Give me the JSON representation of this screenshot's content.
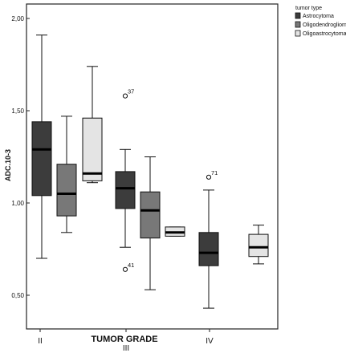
{
  "chart_data": {
    "type": "boxplot",
    "ylabel": "ADC.10-3",
    "xlabel": "TUMOR GRADE",
    "ylim": [
      0.35,
      2.1
    ],
    "yticks": [
      "2,00",
      "1,50",
      "1,00",
      "0,50"
    ],
    "ytick_values": [
      2.0,
      1.5,
      1.0,
      0.5
    ],
    "categories": [
      "II",
      "III",
      "IV"
    ],
    "legend": {
      "title": "tumor type",
      "position": "top-right outside",
      "entries": [
        {
          "name": "Astrocytoma",
          "color": "#3c3c3c"
        },
        {
          "name": "Oligodendroglioma",
          "color": "#787878"
        },
        {
          "name": "Oligoastrocytoma",
          "color": "#e4e4e4"
        }
      ]
    },
    "boxes": [
      {
        "category": "II",
        "series": "Astrocytoma",
        "min": 0.7,
        "q1": 1.04,
        "median": 1.29,
        "q3": 1.44,
        "max": 1.91
      },
      {
        "category": "II",
        "series": "Oligodendroglioma",
        "min": 0.84,
        "q1": 0.93,
        "median": 1.05,
        "q3": 1.21,
        "max": 1.47
      },
      {
        "category": "II",
        "series": "Oligoastrocytoma",
        "min": 1.11,
        "q1": 1.12,
        "median": 1.16,
        "q3": 1.46,
        "max": 1.74
      },
      {
        "category": "III",
        "series": "Astrocytoma",
        "min": 0.76,
        "q1": 0.97,
        "median": 1.08,
        "q3": 1.17,
        "max": 1.29
      },
      {
        "category": "III",
        "series": "Oligodendroglioma",
        "min": 0.53,
        "q1": 0.81,
        "median": 0.96,
        "q3": 1.06,
        "max": 1.25
      },
      {
        "category": "III",
        "series": "Oligoastrocytoma",
        "min": 0.82,
        "q1": 0.82,
        "median": 0.84,
        "q3": 0.87,
        "max": 0.87
      },
      {
        "category": "IV",
        "series": "Astrocytoma",
        "min": 0.43,
        "q1": 0.66,
        "median": 0.73,
        "q3": 0.84,
        "max": 1.07
      },
      {
        "category": "IV",
        "series": "Oligoastrocytoma",
        "min": 0.67,
        "q1": 0.71,
        "median": 0.76,
        "q3": 0.83,
        "max": 0.88
      }
    ],
    "outliers": [
      {
        "category": "III",
        "series": "Astrocytoma",
        "value": 1.58,
        "label": "37"
      },
      {
        "category": "III",
        "series": "Astrocytoma",
        "value": 0.64,
        "label": "41"
      },
      {
        "category": "IV",
        "series": "Astrocytoma",
        "value": 1.14,
        "label": "71"
      }
    ],
    "grid": false
  }
}
